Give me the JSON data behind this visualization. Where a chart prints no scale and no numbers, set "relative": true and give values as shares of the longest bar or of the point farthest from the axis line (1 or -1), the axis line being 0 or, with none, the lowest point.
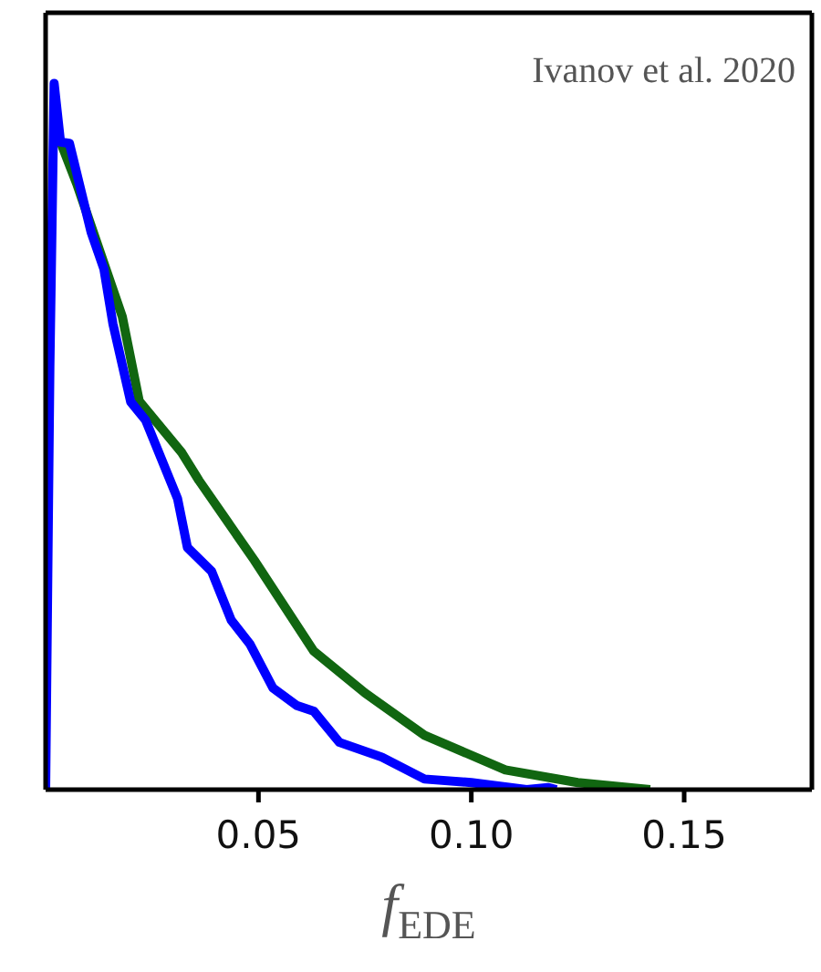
{
  "chart_data": {
    "type": "line",
    "relative": true,
    "xlabel": "f$_{EDE}$",
    "annotations": [
      "Ivanov et al. 2020"
    ],
    "xlim": [
      0,
      0.18
    ],
    "xticks": [
      {
        "value": 0.05,
        "label": "0.05"
      },
      {
        "value": 0.1,
        "label": "0.10"
      },
      {
        "value": 0.15,
        "label": "0.15"
      }
    ],
    "marker": "none",
    "line_style": "solid",
    "series": [
      {
        "color": "#116611",
        "x": [
          0.0035,
          0.0073,
          0.018,
          0.022,
          0.032,
          0.036,
          0.049,
          0.063,
          0.075,
          0.089,
          0.108,
          0.125,
          0.142
        ],
        "values": [
          0.917,
          0.858,
          0.67,
          0.55,
          0.477,
          0.438,
          0.325,
          0.196,
          0.137,
          0.077,
          0.028,
          0.01,
          0
        ]
      },
      {
        "color": "#0000ff",
        "x": [
          0,
          0.001,
          0.002,
          0.0035,
          0.0056,
          0.0107,
          0.0137,
          0.0158,
          0.02,
          0.0235,
          0.031,
          0.0333,
          0.039,
          0.0436,
          0.048,
          0.0534,
          0.059,
          0.063,
          0.069,
          0.079,
          0.089,
          0.1,
          0.113,
          0.118,
          0.12
        ],
        "values": [
          0,
          0.6,
          1.0,
          0.917,
          0.915,
          0.789,
          0.737,
          0.66,
          0.549,
          0.523,
          0.412,
          0.343,
          0.309,
          0.24,
          0.206,
          0.144,
          0.119,
          0.111,
          0.067,
          0.046,
          0.015,
          0.01,
          0,
          0.003,
          0
        ]
      }
    ]
  }
}
